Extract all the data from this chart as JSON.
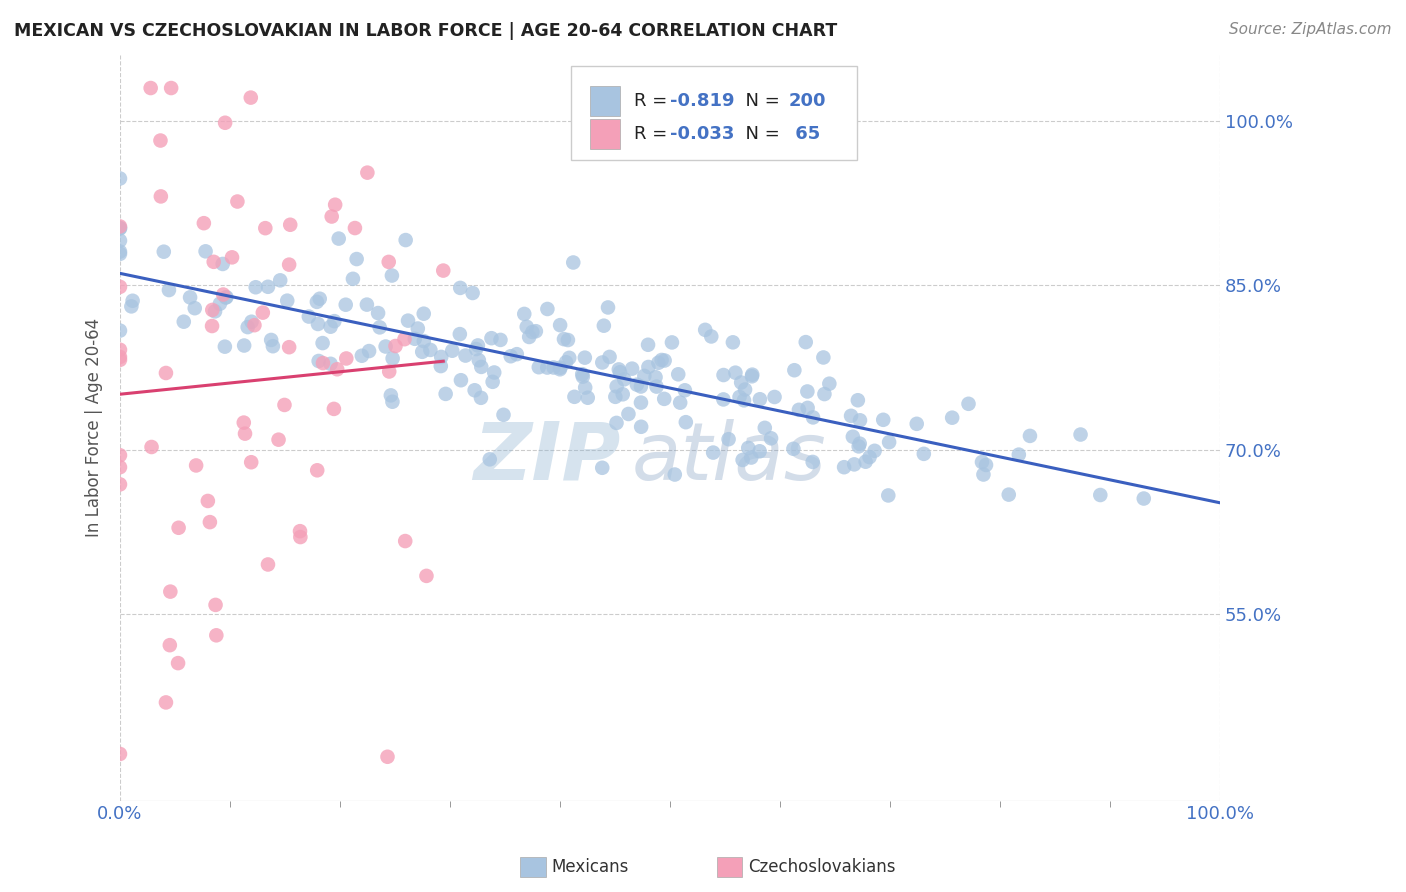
{
  "title": "MEXICAN VS CZECHOSLOVAKIAN IN LABOR FORCE | AGE 20-64 CORRELATION CHART",
  "source": "Source: ZipAtlas.com",
  "ylabel_ticks": [
    0.55,
    0.7,
    0.85,
    1.0
  ],
  "ylabel_labels": [
    "55.0%",
    "70.0%",
    "85.0%",
    "100.0%"
  ],
  "xmin": 0.0,
  "xmax": 1.0,
  "ymin": 0.38,
  "ymax": 1.06,
  "legend_r_blue": "-0.819",
  "legend_n_blue": "200",
  "legend_r_pink": "-0.033",
  "legend_n_pink": " 65",
  "blue_color": "#a8c4e0",
  "pink_color": "#f4a0b8",
  "blue_line_color": "#3a5fbf",
  "pink_line_color": "#d94070",
  "blue_R": -0.819,
  "blue_N": 200,
  "pink_R": -0.033,
  "pink_N": 65,
  "watermark": "ZIPatlas",
  "grid_color": "#cccccc",
  "background_color": "#ffffff",
  "tick_color": "#4472c4",
  "title_color": "#222222",
  "source_color": "#888888",
  "label_color": "#555555"
}
